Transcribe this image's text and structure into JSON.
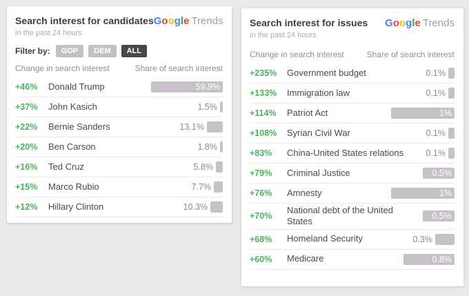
{
  "page": {
    "background": "#e9e9e9"
  },
  "colors": {
    "change_green": "#4cb15c",
    "bar_fill": "#c7c0c9",
    "google_blue": "#4285F4",
    "google_red": "#EA4335",
    "google_yellow": "#FBBC05",
    "google_green": "#34A853",
    "trends_gray": "#9aa0a6"
  },
  "widgets": [
    {
      "title": "Search interest for candidates",
      "subtitle": "in the past 24 hours",
      "logo": {
        "letters": [
          {
            "ch": "G",
            "color": "#4285F4"
          },
          {
            "ch": "o",
            "color": "#EA4335"
          },
          {
            "ch": "o",
            "color": "#FBBC05"
          },
          {
            "ch": "g",
            "color": "#4285F4"
          },
          {
            "ch": "l",
            "color": "#34A853"
          },
          {
            "ch": "e",
            "color": "#EA4335"
          }
        ],
        "suffix": "Trends"
      },
      "filter": {
        "label": "Filter by:",
        "options": [
          {
            "label": "GOP",
            "active": false
          },
          {
            "label": "DEM",
            "active": false
          },
          {
            "label": "ALL",
            "active": true
          }
        ]
      },
      "columns": {
        "change": "Change in search interest",
        "share": "Share of search interest"
      },
      "max_share": 59.9,
      "rows": [
        {
          "change": "+46%",
          "name": "Donald Trump",
          "share": 59.9,
          "share_label": "59.9%"
        },
        {
          "change": "+37%",
          "name": "John Kasich",
          "share": 1.5,
          "share_label": "1.5%"
        },
        {
          "change": "+22%",
          "name": "Bernie Sanders",
          "share": 13.1,
          "share_label": "13.1%"
        },
        {
          "change": "+20%",
          "name": "Ben Carson",
          "share": 1.8,
          "share_label": "1.8%"
        },
        {
          "change": "+16%",
          "name": "Ted Cruz",
          "share": 5.8,
          "share_label": "5.8%"
        },
        {
          "change": "+15%",
          "name": "Marco Rubio",
          "share": 7.7,
          "share_label": "7.7%"
        },
        {
          "change": "+12%",
          "name": "Hillary Clinton",
          "share": 10.3,
          "share_label": "10.3%"
        }
      ]
    },
    {
      "title": "Search interest for issues",
      "subtitle": "in the past 24 hours",
      "logo": {
        "letters": [
          {
            "ch": "G",
            "color": "#4285F4"
          },
          {
            "ch": "o",
            "color": "#EA4335"
          },
          {
            "ch": "o",
            "color": "#FBBC05"
          },
          {
            "ch": "g",
            "color": "#4285F4"
          },
          {
            "ch": "l",
            "color": "#34A853"
          },
          {
            "ch": "e",
            "color": "#EA4335"
          }
        ],
        "suffix": "Trends"
      },
      "filter": null,
      "columns": {
        "change": "Change in search interest",
        "share": "Share of search interest"
      },
      "max_share": 1.0,
      "rows": [
        {
          "change": "+235%",
          "name": "Government budget",
          "share": 0.1,
          "share_label": "0.1%"
        },
        {
          "change": "+133%",
          "name": "Immigration law",
          "share": 0.1,
          "share_label": "0.1%"
        },
        {
          "change": "+114%",
          "name": "Patriot Act",
          "share": 1.0,
          "share_label": "1%"
        },
        {
          "change": "+108%",
          "name": "Syrian Civil War",
          "share": 0.1,
          "share_label": "0.1%"
        },
        {
          "change": "+83%",
          "name": "China-United States relations",
          "share": 0.1,
          "share_label": "0.1%"
        },
        {
          "change": "+79%",
          "name": "Criminal Justice",
          "share": 0.5,
          "share_label": "0.5%"
        },
        {
          "change": "+76%",
          "name": "Amnesty",
          "share": 1.0,
          "share_label": "1%"
        },
        {
          "change": "+70%",
          "name": "National debt of the United States",
          "share": 0.5,
          "share_label": "0.5%"
        },
        {
          "change": "+68%",
          "name": "Homeland Security",
          "share": 0.3,
          "share_label": "0.3%"
        },
        {
          "change": "+60%",
          "name": "Medicare",
          "share": 0.8,
          "share_label": "0.8%"
        }
      ]
    }
  ],
  "chart_data": [
    {
      "type": "bar",
      "title": "Search interest for candidates",
      "subtitle": "in the past 24 hours",
      "source": "Google Trends",
      "categories": [
        "Donald Trump",
        "John Kasich",
        "Bernie Sanders",
        "Ben Carson",
        "Ted Cruz",
        "Marco Rubio",
        "Hillary Clinton"
      ],
      "series": [
        {
          "name": "Change in search interest (%)",
          "values": [
            46,
            37,
            22,
            20,
            16,
            15,
            12
          ]
        },
        {
          "name": "Share of search interest (%)",
          "values": [
            59.9,
            1.5,
            13.1,
            1.8,
            5.8,
            7.7,
            10.3
          ]
        }
      ],
      "layout": {
        "orientation": "horizontal",
        "bars_right_aligned": true,
        "max_share_axis": 59.9
      }
    },
    {
      "type": "bar",
      "title": "Search interest for issues",
      "subtitle": "in the past 24 hours",
      "source": "Google Trends",
      "categories": [
        "Government budget",
        "Immigration law",
        "Patriot Act",
        "Syrian Civil War",
        "China-United States relations",
        "Criminal Justice",
        "Amnesty",
        "National debt of the United States",
        "Homeland Security",
        "Medicare"
      ],
      "series": [
        {
          "name": "Change in search interest (%)",
          "values": [
            235,
            133,
            114,
            108,
            83,
            79,
            76,
            70,
            68,
            60
          ]
        },
        {
          "name": "Share of search interest (%)",
          "values": [
            0.1,
            0.1,
            1,
            0.1,
            0.1,
            0.5,
            1,
            0.5,
            0.3,
            0.8
          ]
        }
      ],
      "layout": {
        "orientation": "horizontal",
        "bars_right_aligned": true,
        "max_share_axis": 1.0
      }
    }
  ]
}
